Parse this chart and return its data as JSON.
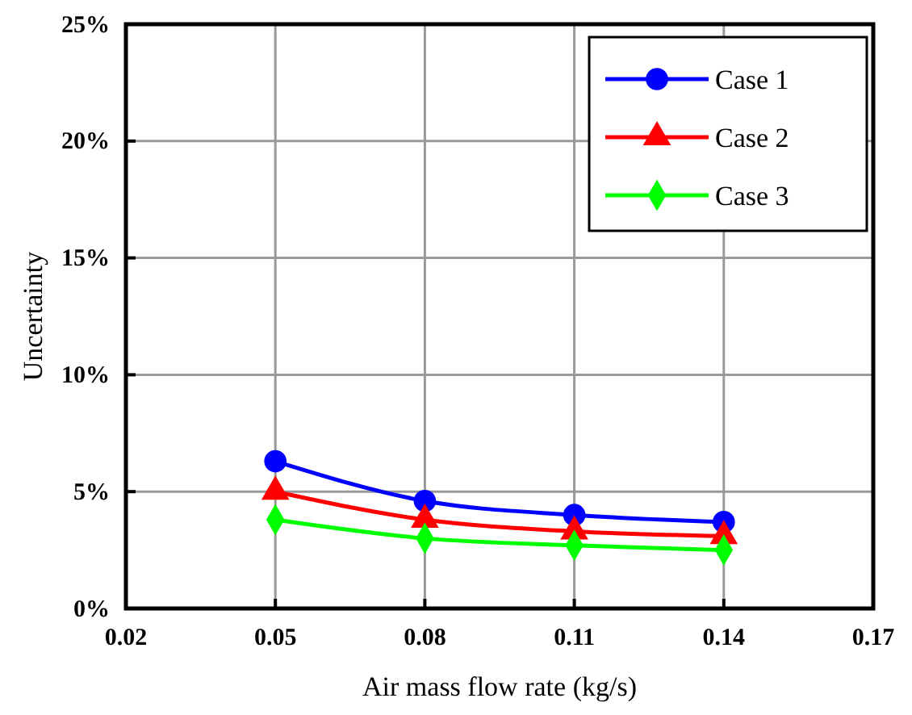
{
  "chart_data": {
    "type": "line",
    "xlabel": "Air mass flow rate (kg/s)",
    "ylabel": "Uncertainty",
    "x": [
      0.05,
      0.08,
      0.11,
      0.14
    ],
    "series": [
      {
        "name": "Case 1",
        "color": "#0000ff",
        "marker": "circle",
        "values": [
          6.3,
          4.6,
          4.0,
          3.7
        ]
      },
      {
        "name": "Case 2",
        "color": "#ff0000",
        "marker": "triangle",
        "values": [
          5.0,
          3.8,
          3.3,
          3.1
        ]
      },
      {
        "name": "Case 3",
        "color": "#00ff00",
        "marker": "diamond",
        "values": [
          3.8,
          3.0,
          2.7,
          2.5
        ]
      }
    ],
    "xlim": [
      0.02,
      0.17
    ],
    "xticks": [
      0.02,
      0.05,
      0.08,
      0.11,
      0.14,
      0.17
    ],
    "ylim": [
      0,
      25
    ],
    "yticks": [
      {
        "value": 0,
        "label": "0%"
      },
      {
        "value": 5,
        "label": "5%"
      },
      {
        "value": 10,
        "label": "10%"
      },
      {
        "value": 15,
        "label": "15%"
      },
      {
        "value": 20,
        "label": "20%"
      },
      {
        "value": 25,
        "label": "25%"
      }
    ],
    "grid": true,
    "legend": "top right",
    "line_style": "solid"
  }
}
